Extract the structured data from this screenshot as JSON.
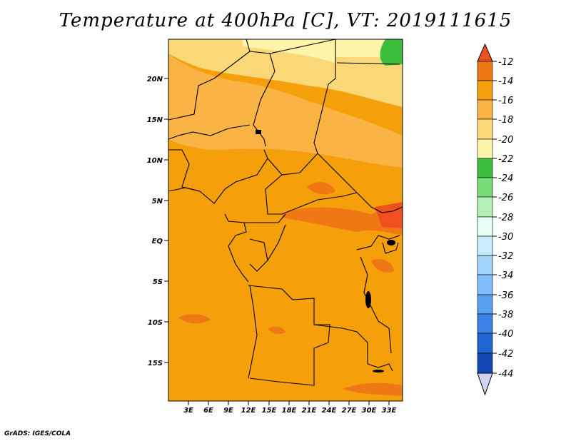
{
  "title": "Temperature at 400hPa [C], VT: 2019111615",
  "credit": "GrADS: IGES/COLA",
  "lat_labels": [
    "20N",
    "15N",
    "10N",
    "5N",
    "EQ",
    "5S",
    "10S",
    "15S"
  ],
  "lon_labels": [
    "3E",
    "6E",
    "9E",
    "12E",
    "15E",
    "18E",
    "21E",
    "24E",
    "27E",
    "30E",
    "33E"
  ],
  "colorbar": {
    "levels": [
      -12,
      -14,
      -16,
      -18,
      -20,
      -22,
      -24,
      -26,
      -28,
      -30,
      -32,
      -34,
      -36,
      -38,
      -40,
      -42,
      -44
    ],
    "colors": {
      "above_-12": "#f0501e",
      "-12_-14": "#f07814",
      "-14_-16": "#f5a00a",
      "-16_-18": "#fab446",
      "-18_-20": "#fad878",
      "-20_-22": "#fff5aa",
      "-22_-24": "#3cbe3c",
      "-24_-26": "#78dc78",
      "-26_-28": "#b4f0b4",
      "-28_-30": "#e6fff5",
      "-30_-32": "#c8ebff",
      "-32_-34": "#a0d2fa",
      "-34_-36": "#82beff",
      "-36_-38": "#5aa0f0",
      "-38_-40": "#3c82e6",
      "-40_-42": "#1e64d2",
      "-42_-44": "#1446b4",
      "below_-44": "#d2d2f5"
    }
  }
}
